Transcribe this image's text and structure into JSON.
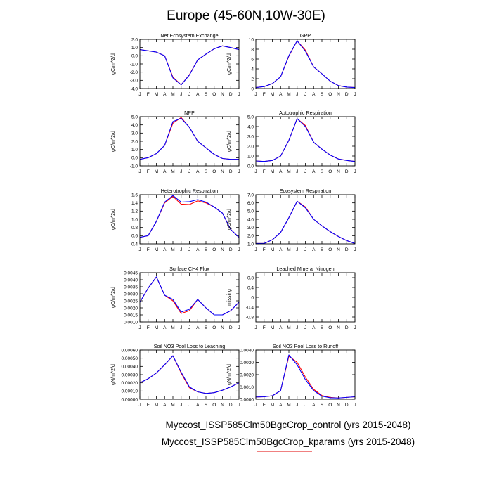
{
  "title": "Europe (45-60N,10W-30E)",
  "legend": {
    "control": "Myccost_ISSP585Clm50BgcCrop_control (yrs 2015-2048)",
    "kparams": "Myccost_ISSP585Clm50BgcCrop_kparams (yrs 2015-2048)"
  },
  "colors": {
    "control": "#ff0000",
    "kparams": "#0000ff"
  },
  "months": [
    "J",
    "F",
    "M",
    "A",
    "M",
    "J",
    "J",
    "A",
    "S",
    "O",
    "N",
    "D",
    "J"
  ],
  "chart_data": [
    {
      "type": "line",
      "title": "Net Ecosystem Exchange",
      "ylabel": "gC/m^2/d",
      "ylim": [
        -4.0,
        2.0
      ],
      "yticks": [
        2.0,
        1.0,
        0.0,
        -1.0,
        -2.0,
        -3.0,
        -4.0
      ],
      "ytick_labels": [
        "2.0",
        "1.0",
        "0.0",
        "-1.0",
        "-2.0",
        "-3.0",
        "-4.0"
      ],
      "series": [
        {
          "key": "control",
          "values": [
            0.75,
            0.6,
            0.45,
            0.0,
            -2.6,
            -3.55,
            -2.3,
            -0.5,
            0.2,
            0.85,
            1.2,
            1.0,
            0.75
          ]
        },
        {
          "key": "kparams",
          "values": [
            0.75,
            0.6,
            0.45,
            0.0,
            -2.7,
            -3.55,
            -2.35,
            -0.5,
            0.2,
            0.85,
            1.2,
            1.0,
            0.75
          ]
        }
      ]
    },
    {
      "type": "line",
      "title": "GPP",
      "ylabel": "gC/m^2/d",
      "ylim": [
        0,
        10
      ],
      "yticks": [
        10,
        8,
        6,
        4,
        2,
        0
      ],
      "ytick_labels": [
        "10",
        "8",
        "6",
        "4",
        "2",
        "0"
      ],
      "series": [
        {
          "key": "control",
          "values": [
            0.2,
            0.4,
            1.0,
            2.4,
            6.6,
            9.7,
            7.8,
            4.4,
            3.0,
            1.5,
            0.6,
            0.3,
            0.2
          ]
        },
        {
          "key": "kparams",
          "values": [
            0.2,
            0.4,
            1.0,
            2.4,
            6.7,
            9.7,
            7.6,
            4.4,
            3.0,
            1.5,
            0.6,
            0.3,
            0.2
          ]
        }
      ]
    },
    {
      "type": "line",
      "title": "NPP",
      "ylabel": "gC/m^2/d",
      "ylim": [
        -1.0,
        5.0
      ],
      "yticks": [
        5.0,
        4.0,
        3.0,
        2.0,
        1.0,
        0.0,
        -1.0
      ],
      "ytick_labels": [
        "5.0",
        "4.0",
        "3.0",
        "2.0",
        "1.0",
        "0.0",
        "-1.0"
      ],
      "series": [
        {
          "key": "control",
          "values": [
            -0.2,
            0.0,
            0.5,
            1.5,
            4.2,
            4.9,
            3.7,
            2.0,
            1.2,
            0.4,
            -0.1,
            -0.2,
            -0.2
          ]
        },
        {
          "key": "kparams",
          "values": [
            -0.2,
            0.0,
            0.5,
            1.5,
            4.4,
            4.8,
            3.7,
            2.0,
            1.2,
            0.4,
            -0.1,
            -0.2,
            -0.2
          ]
        }
      ]
    },
    {
      "type": "line",
      "title": "Autotrophic Respiration",
      "ylabel": "gC/m^2/d",
      "ylim": [
        0.0,
        5.0
      ],
      "yticks": [
        5.0,
        4.0,
        3.0,
        2.0,
        1.0,
        0.0
      ],
      "ytick_labels": [
        "5.0",
        "4.0",
        "3.0",
        "2.0",
        "1.0",
        "0.0"
      ],
      "series": [
        {
          "key": "control",
          "values": [
            0.5,
            0.45,
            0.55,
            1.0,
            2.6,
            4.8,
            4.1,
            2.4,
            1.7,
            1.1,
            0.7,
            0.55,
            0.45
          ]
        },
        {
          "key": "kparams",
          "values": [
            0.5,
            0.45,
            0.55,
            1.0,
            2.6,
            4.8,
            4.0,
            2.4,
            1.7,
            1.1,
            0.7,
            0.55,
            0.45
          ]
        }
      ]
    },
    {
      "type": "line",
      "title": "Heterotrophic Respiration",
      "ylabel": "gC/m^2/d",
      "ylim": [
        0.4,
        1.6
      ],
      "yticks": [
        1.6,
        1.4,
        1.2,
        1.0,
        0.8,
        0.6,
        0.4
      ],
      "ytick_labels": [
        "1.6",
        "1.4",
        "1.2",
        "1.0",
        "0.8",
        "0.6",
        "0.4"
      ],
      "series": [
        {
          "key": "control",
          "values": [
            0.56,
            0.6,
            0.95,
            1.4,
            1.56,
            1.37,
            1.36,
            1.45,
            1.4,
            1.3,
            1.15,
            0.75,
            0.56
          ]
        },
        {
          "key": "kparams",
          "values": [
            0.56,
            0.6,
            0.95,
            1.42,
            1.58,
            1.42,
            1.43,
            1.48,
            1.42,
            1.3,
            1.15,
            0.75,
            0.56
          ]
        }
      ]
    },
    {
      "type": "line",
      "title": "Ecosystem Respiration",
      "ylabel": "gC/m^2/d",
      "ylim": [
        1.0,
        7.0
      ],
      "yticks": [
        7.0,
        6.0,
        5.0,
        4.0,
        3.0,
        2.0,
        1.0
      ],
      "ytick_labels": [
        "7.0",
        "6.0",
        "5.0",
        "4.0",
        "3.0",
        "2.0",
        "1.0"
      ],
      "series": [
        {
          "key": "control",
          "values": [
            1.05,
            1.05,
            1.5,
            2.4,
            4.2,
            6.2,
            5.5,
            4.0,
            3.2,
            2.5,
            1.9,
            1.4,
            1.05
          ]
        },
        {
          "key": "kparams",
          "values": [
            1.05,
            1.05,
            1.5,
            2.4,
            4.2,
            6.2,
            5.4,
            4.0,
            3.2,
            2.5,
            1.9,
            1.4,
            1.05
          ]
        }
      ]
    },
    {
      "type": "line",
      "title": "Surface CH4 Flux",
      "ylabel": "gC/m^2/d",
      "ylim": [
        0.001,
        0.0045
      ],
      "yticks": [
        0.0045,
        0.004,
        0.0035,
        0.003,
        0.0025,
        0.002,
        0.0015,
        0.001
      ],
      "ytick_labels": [
        "0.0045",
        "0.0040",
        "0.0035",
        "0.0030",
        "0.0025",
        "0.0020",
        "0.0015",
        "0.0010"
      ],
      "series": [
        {
          "key": "control",
          "values": [
            0.0024,
            0.0034,
            0.0042,
            0.0029,
            0.0025,
            0.0016,
            0.0018,
            0.0026,
            0.002,
            0.0015,
            0.0015,
            0.0018,
            0.0024
          ]
        },
        {
          "key": "kparams",
          "values": [
            0.0024,
            0.0034,
            0.0042,
            0.0029,
            0.0026,
            0.0017,
            0.0019,
            0.0026,
            0.002,
            0.0015,
            0.0015,
            0.0018,
            0.0024
          ]
        }
      ]
    },
    {
      "type": "line",
      "title": "Leached Mineral Nitrogen",
      "ylabel": "missing",
      "ylim": [
        -1.0,
        1.0
      ],
      "yticks": [
        0.8,
        0.4,
        0.0,
        -0.4,
        -0.8
      ],
      "ytick_labels": [
        "0.8",
        "0.4",
        "0",
        "-0.4",
        "-0.8"
      ],
      "series": []
    },
    {
      "type": "line",
      "title": "Soil NO3 Pool Loss to Leaching",
      "ylabel": "gN/m^2/d",
      "ylim": [
        0,
        0.0006
      ],
      "yticks": [
        0.0006,
        0.0005,
        0.0004,
        0.0003,
        0.0002,
        0.0001,
        0
      ],
      "ytick_labels": [
        "0.00060",
        "0.00050",
        "0.00040",
        "0.00030",
        "0.00020",
        "0.00010",
        "0.00000"
      ],
      "series": [
        {
          "key": "control",
          "values": [
            0.0002,
            0.00025,
            0.00032,
            0.00042,
            0.00053,
            0.00032,
            0.00014,
            9e-05,
            7e-05,
            8e-05,
            0.00011,
            0.00015,
            0.0002
          ]
        },
        {
          "key": "kparams",
          "values": [
            0.0002,
            0.00025,
            0.00032,
            0.00042,
            0.00053,
            0.00033,
            0.00015,
            9e-05,
            7e-05,
            8e-05,
            0.00011,
            0.00015,
            0.0002
          ]
        }
      ]
    },
    {
      "type": "line",
      "title": "Soil NO3 Pool Loss to Runoff",
      "ylabel": "gN/m^2/d",
      "ylim": [
        0,
        0.004
      ],
      "yticks": [
        0.004,
        0.003,
        0.002,
        0.001,
        0
      ],
      "ytick_labels": [
        "0.0040",
        "0.0030",
        "0.0020",
        "0.0010",
        "0.0000"
      ],
      "series": [
        {
          "key": "control",
          "values": [
            0.00018,
            0.0002,
            0.00028,
            0.0007,
            0.0035,
            0.003,
            0.0018,
            0.0008,
            0.0003,
            0.00015,
            0.0001,
            0.00015,
            0.0002
          ]
        },
        {
          "key": "kparams",
          "values": [
            0.00018,
            0.0002,
            0.00028,
            0.0007,
            0.0036,
            0.0028,
            0.0016,
            0.0007,
            0.00025,
            0.00012,
            0.0001,
            0.00015,
            0.0002
          ]
        }
      ]
    }
  ]
}
